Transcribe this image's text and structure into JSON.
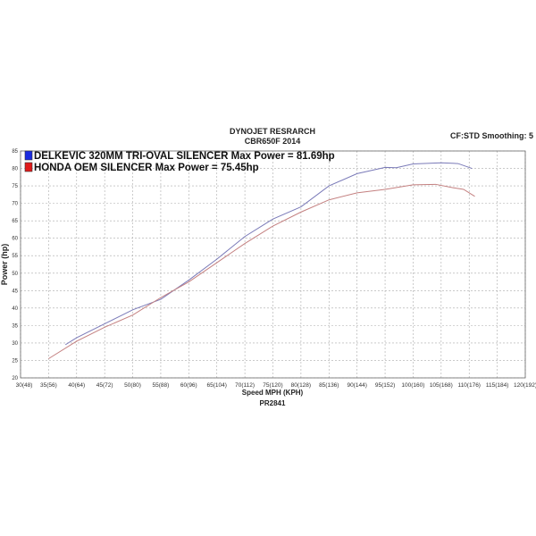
{
  "chart_data": {
    "type": "line",
    "title": "DYNOJET RESRARCH",
    "subtitle": "CBR650F 2014",
    "corner_note": "CF:STD Smoothing: 5",
    "xlabel": "Speed MPH (KPH)",
    "ylabel": "Power (hp)",
    "footer": "PR2841",
    "xlim": [
      30,
      120
    ],
    "ylim": [
      20,
      85
    ],
    "grid": true,
    "legend_position": "top-left",
    "x_ticks": [
      30,
      35,
      40,
      45,
      50,
      55,
      60,
      65,
      70,
      75,
      80,
      85,
      90,
      95,
      100,
      105,
      110,
      115,
      120
    ],
    "x_tick_labels": [
      "30(48)",
      "35(56)",
      "40(64)",
      "45(72)",
      "50(80)",
      "55(88)",
      "60(96)",
      "65(104)",
      "70(112)",
      "75(120)",
      "80(128)",
      "85(136)",
      "90(144)",
      "95(152)",
      "100(160)",
      "105(168)",
      "110(176)",
      "115(184)",
      "120(192)"
    ],
    "y_ticks": [
      20,
      25,
      30,
      35,
      40,
      45,
      50,
      55,
      60,
      65,
      70,
      75,
      80,
      85
    ],
    "y_tick_labels": [
      "20",
      "25",
      "30",
      "35",
      "40",
      "45",
      "50",
      "55",
      "60",
      "65",
      "70",
      "75",
      "80",
      "85"
    ],
    "series": [
      {
        "name": "DELKEVIC 320MM TRI-OVAL SILENCER  Max Power = 81.69hp",
        "color": "#7a7ab8",
        "swatch": "#1a2be0",
        "x": [
          38,
          40,
          45,
          50,
          55,
          60,
          65,
          70,
          75,
          80,
          85,
          90,
          95,
          97,
          100,
          105,
          108,
          110.5
        ],
        "y": [
          29.5,
          31.5,
          35.5,
          39.5,
          42.5,
          48,
          54,
          60.5,
          65.5,
          69,
          75,
          78.5,
          80.3,
          80.2,
          81.3,
          81.6,
          81.4,
          80
        ]
      },
      {
        "name": "HONDA OEM SILENCER Max Power = 75.45hp",
        "color": "#c48080",
        "swatch": "#e01a1a",
        "x": [
          35,
          40,
          45,
          50,
          55,
          60,
          65,
          70,
          75,
          80,
          85,
          90,
          95,
          100,
          104,
          107,
          109,
          111
        ],
        "y": [
          25.5,
          30.5,
          34.5,
          38,
          43,
          47.5,
          53,
          58.5,
          63.5,
          67.5,
          71,
          73,
          74,
          75.3,
          75.45,
          74.5,
          74,
          72
        ]
      }
    ]
  }
}
